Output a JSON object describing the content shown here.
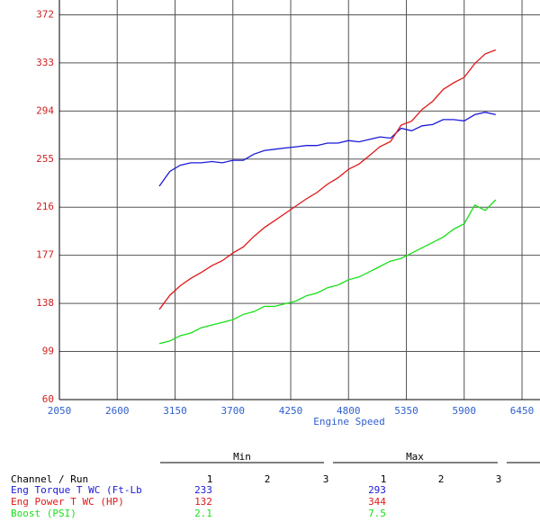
{
  "chart_data": {
    "type": "line",
    "x_label": "Engine Speed",
    "x": [
      3000,
      3100,
      3200,
      3300,
      3400,
      3500,
      3600,
      3700,
      3800,
      3900,
      4000,
      4100,
      4200,
      4300,
      4400,
      4500,
      4600,
      4700,
      4800,
      4900,
      5000,
      5100,
      5200,
      5300,
      5400,
      5500,
      5600,
      5700,
      5800,
      5900,
      6000,
      6100,
      6200
    ],
    "xlim": [
      2050,
      6621
    ],
    "xticks": [
      2050,
      2600,
      3150,
      3700,
      4250,
      4800,
      5350,
      5900,
      6450
    ],
    "ylim": [
      60,
      384
    ],
    "yticks": [
      60,
      99,
      138,
      177,
      216,
      255,
      294,
      333,
      372
    ],
    "y2lim": [
      0,
      15
    ],
    "grid": true,
    "x_tick_color": "#3060d0",
    "y_tick_color": "#d02020",
    "series": [
      {
        "name": "Eng Torque T WC (Ft-Lb",
        "color": "#1a1ad8",
        "values": [
          233,
          245,
          250,
          252,
          252,
          253,
          252,
          254,
          254,
          259,
          262,
          263,
          264,
          265,
          266,
          266,
          268,
          268,
          270,
          269,
          271,
          273,
          272,
          280,
          278,
          282,
          283,
          287,
          287,
          286,
          291,
          293,
          291
        ]
      },
      {
        "name": "Eng Power T WC (HP)",
        "color": "#e01818",
        "values": [
          133.1,
          144.6,
          152.3,
          158.3,
          163.1,
          168.6,
          172.7,
          178.9,
          183.8,
          192.3,
          199.5,
          205.3,
          211.1,
          217.0,
          222.8,
          227.9,
          234.7,
          239.8,
          246.8,
          251.0,
          258.0,
          265.1,
          269.3,
          282.6,
          285.8,
          295.3,
          301.8,
          311.5,
          316.9,
          321.3,
          332.4,
          340.3,
          343.5
        ]
      },
      {
        "name": "Boost (PSI)",
        "color": "#18e018",
        "axis": "y2",
        "values": [
          2.1,
          2.2,
          2.4,
          2.5,
          2.7,
          2.8,
          2.9,
          3.0,
          3.2,
          3.3,
          3.5,
          3.5,
          3.6,
          3.7,
          3.9,
          4.0,
          4.2,
          4.3,
          4.5,
          4.6,
          4.8,
          5.0,
          5.2,
          5.3,
          5.5,
          5.7,
          5.9,
          6.1,
          6.4,
          6.6,
          7.3,
          7.1,
          7.5
        ]
      }
    ]
  },
  "table": {
    "groups": [
      "Min",
      "Max"
    ],
    "header": "Channel / Run",
    "runs": [
      1,
      2,
      3
    ],
    "rows": [
      {
        "min": 233,
        "max": 293
      },
      {
        "min": 132,
        "max": 344
      },
      {
        "min": 2.1,
        "max": 7.5
      }
    ]
  }
}
